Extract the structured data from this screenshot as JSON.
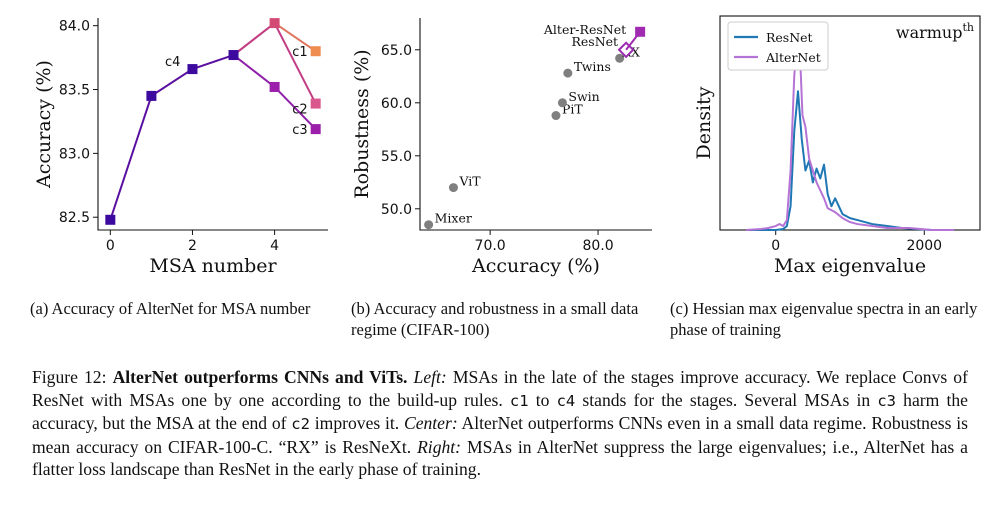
{
  "chart_data": [
    {
      "type": "line",
      "panel": "a",
      "xlabel": "MSA number",
      "ylabel": "Accuracy (%)",
      "xlim": [
        -0.3,
        5.3
      ],
      "ylim": [
        82.4,
        84.06
      ],
      "xticks": [
        0,
        2,
        4
      ],
      "yticks": [
        82.5,
        83.0,
        83.5,
        84.0
      ],
      "series": [
        {
          "name": "c4",
          "x": [
            0,
            1,
            2,
            3
          ],
          "values": [
            82.48,
            83.45,
            83.66,
            83.77
          ]
        },
        {
          "name": "c1",
          "x": [
            3,
            4,
            5
          ],
          "values": [
            83.77,
            84.02,
            83.8
          ]
        },
        {
          "name": "c2",
          "x": [
            3,
            4,
            5
          ],
          "values": [
            83.77,
            84.02,
            83.39
          ]
        },
        {
          "name": "c3",
          "x": [
            3,
            4,
            5
          ],
          "values": [
            83.77,
            83.52,
            83.19
          ]
        }
      ],
      "annotations": [
        "c4",
        "c1",
        "c2",
        "c3"
      ]
    },
    {
      "type": "scatter",
      "panel": "b",
      "xlabel": "Accuracy (%)",
      "ylabel": "Robustness (%)",
      "xlim": [
        63.5,
        85.0
      ],
      "ylim": [
        48.0,
        68.0
      ],
      "xticks": [
        70.0,
        80.0
      ],
      "yticks": [
        50.0,
        55.0,
        60.0,
        65.0
      ],
      "points": [
        {
          "label": "Mixer",
          "x": 64.3,
          "y": 48.5
        },
        {
          "label": "ViT",
          "x": 66.6,
          "y": 52.0
        },
        {
          "label": "PiT",
          "x": 76.1,
          "y": 58.8
        },
        {
          "label": "Swin",
          "x": 76.7,
          "y": 60.0
        },
        {
          "label": "Twins",
          "x": 77.2,
          "y": 62.8
        },
        {
          "label": "RX",
          "x": 82.0,
          "y": 64.2
        },
        {
          "label": "ResNet",
          "x": 82.6,
          "y": 65.0
        },
        {
          "label": "Alter-ResNet",
          "x": 83.9,
          "y": 66.7
        }
      ]
    },
    {
      "type": "line",
      "panel": "c",
      "title": "warmup",
      "title_superscript": "th",
      "xlabel": "Max eigenvalue",
      "ylabel": "Density",
      "xlim": [
        -750,
        2750
      ],
      "ylim": [
        0,
        1
      ],
      "xticks": [
        0,
        2000
      ],
      "legend": [
        "ResNet",
        "AlterNet"
      ],
      "legend_position": "top-left",
      "series": [
        {
          "name": "ResNet",
          "color": "#1f77b4",
          "x": [
            -400,
            0,
            100,
            150,
            200,
            250,
            300,
            350,
            400,
            450,
            500,
            550,
            600,
            650,
            700,
            750,
            800,
            900,
            1000,
            1100,
            1200,
            1300,
            1500,
            1700,
            1900,
            2100,
            2400
          ],
          "values": [
            0,
            0,
            0.005,
            0.02,
            0.12,
            0.5,
            0.7,
            0.46,
            0.3,
            0.35,
            0.24,
            0.31,
            0.26,
            0.33,
            0.18,
            0.12,
            0.16,
            0.08,
            0.06,
            0.05,
            0.04,
            0.03,
            0.02,
            0.01,
            0.005,
            0,
            0
          ]
        },
        {
          "name": "AlterNet",
          "color": "#b673d6",
          "x": [
            -400,
            -200,
            -100,
            0,
            50,
            100,
            150,
            200,
            250,
            300,
            330,
            360,
            400,
            450,
            500,
            550,
            600,
            650,
            700,
            800,
            900,
            1000,
            1100,
            1300,
            1500,
            1800,
            2100,
            2400
          ],
          "values": [
            0,
            0.005,
            0.01,
            0.02,
            0.03,
            0.02,
            0.05,
            0.3,
            0.78,
            0.98,
            0.86,
            0.58,
            0.52,
            0.36,
            0.3,
            0.24,
            0.2,
            0.16,
            0.11,
            0.09,
            0.06,
            0.04,
            0.03,
            0.02,
            0.01,
            0.01,
            0,
            0
          ]
        }
      ]
    }
  ],
  "subcaptions": {
    "a": "(a) Accuracy of AlterNet for MSA number",
    "b": "(b) Accuracy and robustness in a small data regime (CIFAR-100)",
    "c": "(c) Hessian max eigenvalue spectra in an early phase of training"
  },
  "caption": {
    "figure_label": "Figure 12:",
    "bold_title": "AlterNet outperforms CNNs and ViTs.",
    "left_label": "Left:",
    "left_text_1": "MSAs in the late of the stages improve accuracy. We replace Convs of ResNet with MSAs one by one according to the build-up rules.",
    "code_c1": "c1",
    "text_to": "to",
    "code_c4": "c4",
    "text_stands": "stands for the stages. Several MSAs in",
    "code_c3": "c3",
    "text_harm": "harm the accuracy, but the MSA at the end of",
    "code_c2": "c2",
    "text_improves": "improves it.",
    "center_label": "Center:",
    "center_text": "AlterNet outperforms CNNs even in a small data regime. Robustness is mean accuracy on CIFAR-100-C. “RX” is ResNeXt.",
    "right_label": "Right:",
    "right_text": "MSAs in AlterNet suppress the large eigenvalues; i.e., AlterNet has a flatter loss landscape than ResNet in the early phase of training."
  },
  "colors": {
    "c4_line": "#5a0fa0",
    "c1_line": "#e0745c",
    "c2_line": "#c23d85",
    "c3_line": "#8e1fa8",
    "c4_marker": "#3d0aa0",
    "c1_marker": "#ef8c50",
    "c2_marker": "#d9578d",
    "c3_marker": "#9b1faa",
    "scatter_grey": "#7f7f7f",
    "alter_marker": "#a02bb0",
    "resnet_marker": "#9a2ab0",
    "resnet_curve": "#1f77b4",
    "alternet_curve": "#b673d6"
  }
}
